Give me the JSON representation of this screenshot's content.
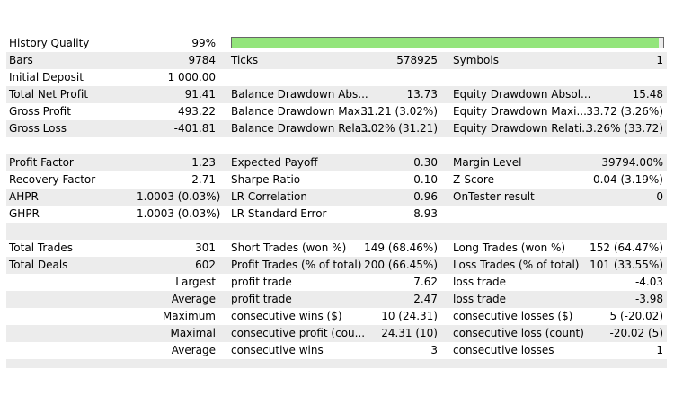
{
  "history_quality": {
    "label": "History Quality",
    "value": "99%",
    "fill_fraction": 0.99,
    "bar_color": "#93e57b"
  },
  "rows": [
    {
      "shade": true,
      "cells": [
        "Bars",
        "9784",
        "Ticks",
        "578925",
        "Symbols",
        "1"
      ]
    },
    {
      "shade": false,
      "cells": [
        "Initial Deposit",
        "1 000.00",
        "",
        "",
        "",
        ""
      ]
    },
    {
      "shade": true,
      "cells": [
        "Total Net Profit",
        "91.41",
        "Balance Drawdown Abs...",
        "13.73",
        "Equity Drawdown Absol...",
        "15.48"
      ]
    },
    {
      "shade": false,
      "cells": [
        "Gross Profit",
        "493.22",
        "Balance Drawdown Max...",
        "31.21 (3.02%)",
        "Equity Drawdown Maxi...",
        "33.72 (3.26%)"
      ]
    },
    {
      "shade": true,
      "cells": [
        "Gross Loss",
        "-401.81",
        "Balance Drawdown Rela...",
        "3.02% (31.21)",
        "Equity Drawdown Relati...",
        "3.26% (33.72)"
      ]
    },
    {
      "shade": false,
      "cells": [
        "",
        "",
        "",
        "",
        "",
        ""
      ]
    },
    {
      "shade": true,
      "cells": [
        "Profit Factor",
        "1.23",
        "Expected Payoff",
        "0.30",
        "Margin Level",
        "39794.00%"
      ]
    },
    {
      "shade": false,
      "cells": [
        "Recovery Factor",
        "2.71",
        "Sharpe Ratio",
        "0.10",
        "Z-Score",
        "0.04 (3.19%)"
      ]
    },
    {
      "shade": true,
      "cells": [
        "AHPR",
        "1.0003 (0.03%)",
        "LR Correlation",
        "0.96",
        "OnTester result",
        "0"
      ]
    },
    {
      "shade": false,
      "cells": [
        "GHPR",
        "1.0003 (0.03%)",
        "LR Standard Error",
        "8.93",
        "",
        ""
      ]
    },
    {
      "shade": true,
      "cells": [
        "",
        "",
        "",
        "",
        "",
        ""
      ]
    },
    {
      "shade": false,
      "cells": [
        "Total Trades",
        "301",
        "Short Trades (won %)",
        "149 (68.46%)",
        "Long Trades (won %)",
        "152 (64.47%)"
      ]
    },
    {
      "shade": true,
      "cells": [
        "Total Deals",
        "602",
        "Profit Trades (% of total)",
        "200 (66.45%)",
        "Loss Trades (% of total)",
        "101 (33.55%)"
      ]
    },
    {
      "shade": false,
      "cells": [
        "",
        "Largest",
        "profit trade",
        "7.62",
        "loss trade",
        "-4.03"
      ]
    },
    {
      "shade": true,
      "cells": [
        "",
        "Average",
        "profit trade",
        "2.47",
        "loss trade",
        "-3.98"
      ]
    },
    {
      "shade": false,
      "cells": [
        "",
        "Maximum",
        "consecutive wins ($)",
        "10 (24.31)",
        "consecutive losses ($)",
        "5 (-20.02)"
      ]
    },
    {
      "shade": true,
      "cells": [
        "",
        "Maximal",
        "consecutive profit (cou...",
        "24.31 (10)",
        "consecutive loss (count)",
        "-20.02 (5)"
      ]
    },
    {
      "shade": false,
      "cells": [
        "",
        "Average",
        "consecutive wins",
        "3",
        "consecutive losses",
        "1"
      ]
    }
  ]
}
